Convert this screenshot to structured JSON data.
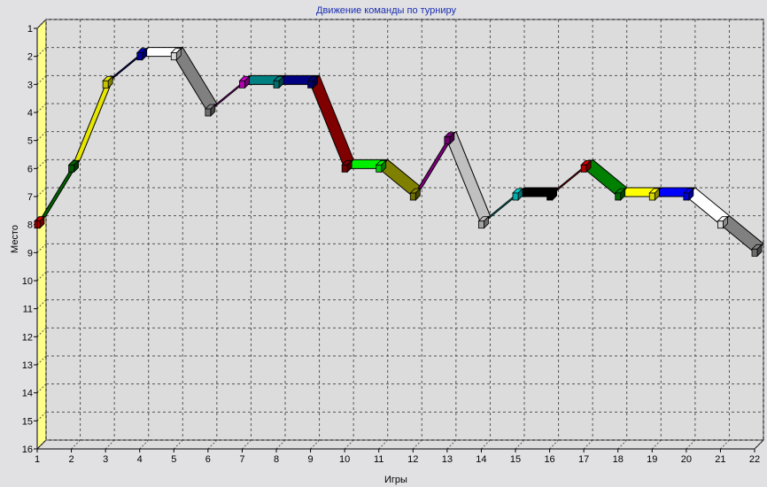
{
  "chart_data": {
    "type": "line",
    "title": "Движение команды по турниру",
    "xlabel": "Игры",
    "ylabel": "Место",
    "x": [
      1,
      2,
      3,
      4,
      5,
      6,
      7,
      8,
      9,
      10,
      11,
      12,
      13,
      14,
      15,
      16,
      17,
      18,
      19,
      20,
      21,
      22
    ],
    "xlim": [
      1,
      22
    ],
    "ylim": [
      1,
      16
    ],
    "y_inverted": true,
    "grid": true,
    "series": [
      {
        "values": [
          8,
          6,
          3,
          2,
          2,
          4,
          3,
          3,
          3,
          6,
          6,
          7,
          5,
          8,
          7,
          7,
          6,
          7,
          7,
          7,
          8,
          9
        ],
        "colors": [
          "#cc0000",
          "#006400",
          "#e6e600",
          "#0000bb",
          "#ffffff",
          "#808080",
          "#cc00cc",
          "#008080",
          "#000080",
          "#800000",
          "#00ee00",
          "#808000",
          "#800080",
          "#c0c0c0",
          "#00cccc",
          "#000000",
          "#cc0000",
          "#008000",
          "#ffff00",
          "#0000ff",
          "#ffffff",
          "#808080"
        ]
      }
    ],
    "wall_color": "#ffff88"
  }
}
